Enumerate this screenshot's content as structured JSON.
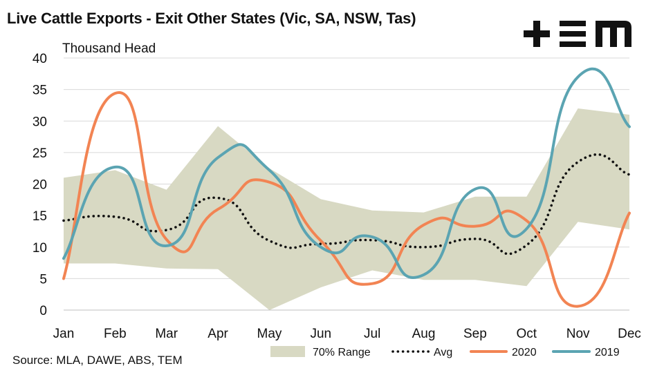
{
  "title": "Live Cattle Exports - Exit Other States (Vic, SA, NSW, Tas)",
  "source": "Source: MLA, DAWE, ABS, TEM",
  "logo": {
    "text": "TEM",
    "icon": "tem-logo"
  },
  "colors": {
    "range": "#d8d9c3",
    "avg": "#111111",
    "s2020": "#f28453",
    "s2019": "#5ba4b2",
    "grid": "#d9d9d9"
  },
  "chart_data": {
    "type": "line",
    "title": "Live Cattle Exports - Exit Other States (Vic, SA, NSW, Tas)",
    "ylabel": "Thousand Head",
    "xlabel": "",
    "ylim": [
      0,
      40
    ],
    "yticks": [
      "0",
      "5",
      "10",
      "15",
      "20",
      "25",
      "30",
      "35",
      "40"
    ],
    "grid": true,
    "legend_position": "bottom",
    "categories": [
      "Jan",
      "Feb",
      "Mar",
      "Apr",
      "May",
      "Jun",
      "Jul",
      "Aug",
      "Sep",
      "Oct",
      "Nov",
      "Dec"
    ],
    "band": {
      "name": "70% Range",
      "lower": [
        7.4,
        7.4,
        6.6,
        6.5,
        0.0,
        3.6,
        6.3,
        4.8,
        4.8,
        3.8,
        14.0,
        12.8
      ],
      "upper": [
        21.0,
        22.2,
        19.1,
        29.2,
        22.5,
        17.6,
        15.8,
        15.5,
        18.0,
        18.0,
        32.0,
        31.0
      ]
    },
    "series": [
      {
        "name": "Avg",
        "style": "dotted",
        "values": [
          14.2,
          14.8,
          12.7,
          17.8,
          11.0,
          10.5,
          11.1,
          10.0,
          11.3,
          10.3,
          23.5,
          21.5
        ]
      },
      {
        "name": "2020",
        "style": "solid",
        "values": [
          5.0,
          34.4,
          11.2,
          16.0,
          20.3,
          11.0,
          4.2,
          13.5,
          13.3,
          14.2,
          0.6,
          15.4
        ]
      },
      {
        "name": "2019",
        "style": "solid",
        "values": [
          8.2,
          22.7,
          10.2,
          24.2,
          22.2,
          10.0,
          11.6,
          5.6,
          19.2,
          12.9,
          37.0,
          29.1
        ]
      }
    ]
  }
}
